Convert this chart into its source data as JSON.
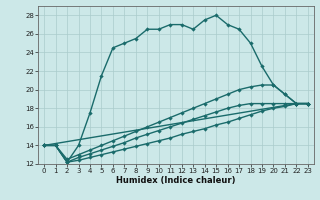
{
  "xlabel": "Humidex (Indice chaleur)",
  "bg_color": "#cce8e8",
  "grid_color": "#aacccc",
  "line_color": "#1a6b6b",
  "xlim": [
    -0.5,
    23.5
  ],
  "ylim": [
    12,
    29
  ],
  "xticks": [
    0,
    1,
    2,
    3,
    4,
    5,
    6,
    7,
    8,
    9,
    10,
    11,
    12,
    13,
    14,
    15,
    16,
    17,
    18,
    19,
    20,
    21,
    22,
    23
  ],
  "yticks": [
    12,
    14,
    16,
    18,
    20,
    22,
    24,
    26,
    28
  ],
  "curve1_x": [
    0,
    1,
    2,
    3,
    4,
    5,
    6,
    7,
    8,
    9,
    10,
    11,
    12,
    13,
    14,
    15,
    16,
    17,
    18,
    19,
    20,
    21,
    22,
    23
  ],
  "curve1_y": [
    14.0,
    14.0,
    12.2,
    14.0,
    17.5,
    21.5,
    24.5,
    25.0,
    25.5,
    26.5,
    26.5,
    27.0,
    27.0,
    26.5,
    27.5,
    28.0,
    27.0,
    26.5,
    25.0,
    22.5,
    20.5,
    19.5,
    18.5,
    18.5
  ],
  "curve2_x": [
    0,
    22,
    23
  ],
  "curve2_y": [
    14.0,
    18.5,
    18.5
  ],
  "curve3_x": [
    0,
    1,
    2,
    3,
    4,
    5,
    6,
    7,
    8,
    9,
    10,
    11,
    12,
    13,
    14,
    15,
    16,
    17,
    18,
    19,
    20,
    21,
    22,
    23
  ],
  "curve3_y": [
    14.0,
    14.0,
    12.5,
    13.0,
    13.5,
    14.0,
    14.5,
    15.0,
    15.5,
    16.0,
    16.5,
    17.0,
    17.5,
    18.0,
    18.5,
    19.0,
    19.5,
    20.0,
    20.3,
    20.5,
    20.5,
    19.5,
    18.5,
    18.5
  ],
  "curve4_x": [
    0,
    1,
    2,
    3,
    4,
    5,
    6,
    7,
    8,
    9,
    10,
    11,
    12,
    13,
    14,
    15,
    16,
    17,
    18,
    19,
    20,
    21,
    22,
    23
  ],
  "curve4_y": [
    14.0,
    14.0,
    12.2,
    12.7,
    13.1,
    13.5,
    13.9,
    14.3,
    14.8,
    15.2,
    15.6,
    16.0,
    16.4,
    16.8,
    17.2,
    17.6,
    18.0,
    18.3,
    18.5,
    18.5,
    18.5,
    18.5,
    18.5,
    18.5
  ],
  "curve5_x": [
    0,
    1,
    2,
    3,
    4,
    5,
    6,
    7,
    8,
    9,
    10,
    11,
    12,
    13,
    14,
    15,
    16,
    17,
    18,
    19,
    20,
    21,
    22,
    23
  ],
  "curve5_y": [
    14.0,
    14.0,
    12.2,
    12.4,
    12.7,
    13.0,
    13.3,
    13.6,
    13.9,
    14.2,
    14.5,
    14.8,
    15.2,
    15.5,
    15.8,
    16.2,
    16.5,
    16.9,
    17.3,
    17.7,
    18.0,
    18.2,
    18.5,
    18.5
  ]
}
